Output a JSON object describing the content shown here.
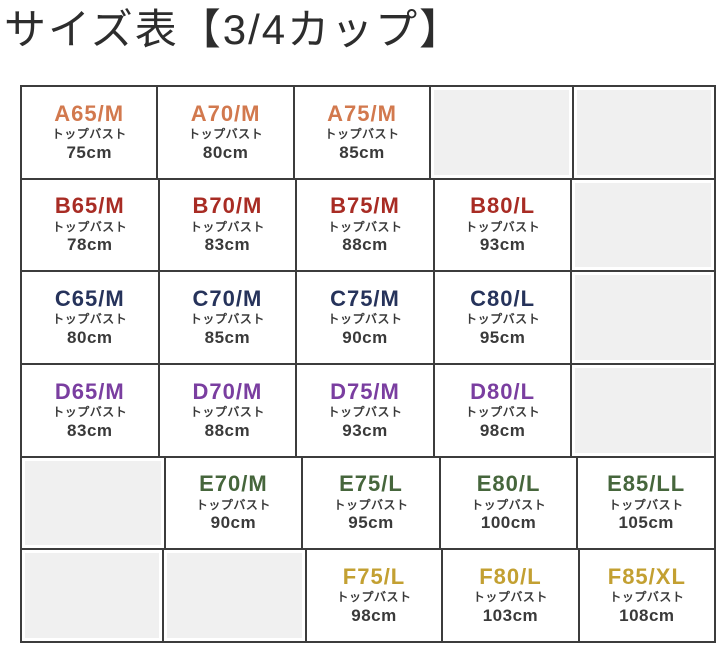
{
  "title": "サイズ表【3/4カップ】",
  "colors": {
    "title_text": "#2d2d2d",
    "cell_text": "#3a3a3a",
    "border": "#3c3c3c",
    "empty_cell_fill": "#f0f0f0",
    "cup_a": "#d2794e",
    "cup_b": "#a82c24",
    "cup_c": "#26335b",
    "cup_d": "#7a3ea0",
    "cup_e": "#46663c",
    "cup_f": "#c3a032"
  },
  "chart_data": {
    "type": "table",
    "title": "サイズ表【3/4カップ】",
    "bust_label": "トップバスト",
    "columns": 5,
    "rows": [
      {
        "cup": "A",
        "color": "#d2794e",
        "cells": [
          {
            "size": "A65/M",
            "bust": "75cm"
          },
          {
            "size": "A70/M",
            "bust": "80cm"
          },
          {
            "size": "A75/M",
            "bust": "85cm"
          },
          null,
          null
        ]
      },
      {
        "cup": "B",
        "color": "#a82c24",
        "cells": [
          {
            "size": "B65/M",
            "bust": "78cm"
          },
          {
            "size": "B70/M",
            "bust": "83cm"
          },
          {
            "size": "B75/M",
            "bust": "88cm"
          },
          {
            "size": "B80/L",
            "bust": "93cm"
          },
          null
        ]
      },
      {
        "cup": "C",
        "color": "#26335b",
        "cells": [
          {
            "size": "C65/M",
            "bust": "80cm"
          },
          {
            "size": "C70/M",
            "bust": "85cm"
          },
          {
            "size": "C75/M",
            "bust": "90cm"
          },
          {
            "size": "C80/L",
            "bust": "95cm"
          },
          null
        ]
      },
      {
        "cup": "D",
        "color": "#7a3ea0",
        "cells": [
          {
            "size": "D65/M",
            "bust": "83cm"
          },
          {
            "size": "D70/M",
            "bust": "88cm"
          },
          {
            "size": "D75/M",
            "bust": "93cm"
          },
          {
            "size": "D80/L",
            "bust": "98cm"
          },
          null
        ]
      },
      {
        "cup": "E",
        "color": "#46663c",
        "cells": [
          null,
          {
            "size": "E70/M",
            "bust": "90cm"
          },
          {
            "size": "E75/L",
            "bust": "95cm"
          },
          {
            "size": "E80/L",
            "bust": "100cm"
          },
          {
            "size": "E85/LL",
            "bust": "105cm"
          }
        ]
      },
      {
        "cup": "F",
        "color": "#c3a032",
        "cells": [
          null,
          null,
          {
            "size": "F75/L",
            "bust": "98cm"
          },
          {
            "size": "F80/L",
            "bust": "103cm"
          },
          {
            "size": "F85/XL",
            "bust": "108cm"
          }
        ]
      }
    ]
  }
}
